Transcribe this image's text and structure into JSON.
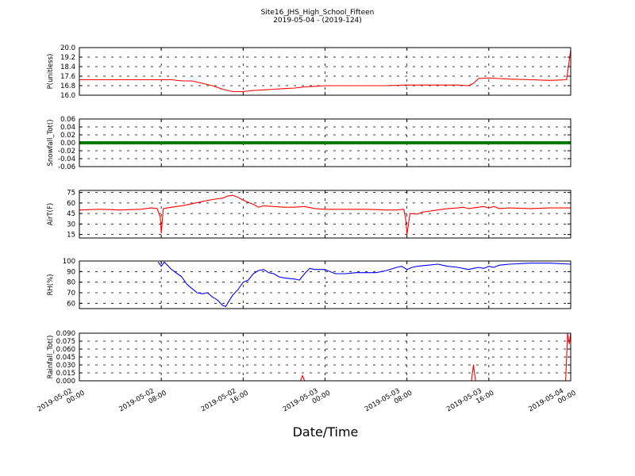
{
  "figure": {
    "title": "Site16_JHS_High_School_Fifteen",
    "subtitle": "2019-05-04 - (2019-124)",
    "xlabel": "Date/Time",
    "xticks": [
      "2019-05-02\n00:00",
      "2019-05-02\n08:00",
      "2019-05-02\n16:00",
      "2019-05-03\n00:00",
      "2019-05-03\n08:00",
      "2019-05-03\n16:00",
      "2019-05-04\n00:00"
    ]
  },
  "chart_data": [
    {
      "type": "line",
      "ylabel": "P(unitless)",
      "ylim": [
        16.0,
        20.0
      ],
      "yticks": [
        "16.0",
        "16.8",
        "17.6",
        "18.4",
        "19.2",
        "20.0"
      ],
      "color": "#ff0000",
      "grid": true,
      "x_hours": [
        0,
        2,
        4,
        6,
        8,
        9,
        10,
        11,
        12,
        13,
        14,
        15,
        16,
        17,
        18,
        19,
        20,
        21,
        22,
        23,
        24,
        28,
        30,
        32,
        36,
        37,
        38,
        38.5,
        39,
        40,
        41,
        42,
        44,
        46,
        47.6,
        48
      ],
      "values": [
        17.3,
        17.3,
        17.3,
        17.3,
        17.3,
        17.3,
        17.2,
        17.2,
        17.0,
        16.8,
        16.5,
        16.3,
        16.3,
        16.4,
        16.45,
        16.5,
        16.55,
        16.6,
        16.7,
        16.75,
        16.8,
        16.8,
        16.8,
        16.85,
        16.85,
        16.85,
        16.8,
        17.0,
        17.4,
        17.45,
        17.4,
        17.35,
        17.3,
        17.25,
        17.3,
        19.8
      ]
    },
    {
      "type": "line",
      "ylabel": "Snowfall_Tot()",
      "ylim": [
        -0.06,
        0.06
      ],
      "yticks": [
        "-0.06",
        "-0.04",
        "-0.02",
        "0.00",
        "0.02",
        "0.04",
        "0.06"
      ],
      "color": "#008000",
      "grid": true,
      "x_hours": [
        0,
        48
      ],
      "values": [
        0.0,
        0.0
      ]
    },
    {
      "type": "line",
      "ylabel": "AirT(F)",
      "ylim": [
        10,
        78
      ],
      "yticks": [
        "15",
        "30",
        "45",
        "60",
        "75"
      ],
      "color": "#ff0000",
      "grid": true,
      "x_hours": [
        0,
        2,
        4,
        6,
        7,
        7.6,
        7.9,
        8.0,
        8.2,
        9,
        10,
        11,
        12,
        13,
        14,
        14.5,
        15,
        15.5,
        16,
        16.5,
        17,
        17.5,
        18,
        19,
        20,
        21,
        22,
        23,
        24,
        26,
        28,
        30,
        31,
        31.7,
        31.9,
        32.0,
        32.3,
        33,
        33.5,
        34,
        35,
        36,
        37,
        37.5,
        38,
        38.5,
        39,
        39.5,
        40,
        40.5,
        41,
        42,
        44,
        46,
        48
      ],
      "values": [
        50,
        51,
        50,
        51,
        53,
        52,
        40,
        17,
        52,
        54,
        56,
        59,
        62,
        65,
        67,
        70,
        71,
        68,
        64,
        61,
        58,
        54,
        56,
        55,
        54,
        54,
        55,
        52,
        51,
        51,
        51,
        50,
        50,
        51,
        35,
        15,
        45,
        44,
        47,
        48,
        50,
        52,
        53,
        54,
        52,
        53,
        54,
        55,
        53,
        55,
        52,
        53,
        52,
        53,
        53
      ]
    },
    {
      "type": "line",
      "ylabel": "RH(%)",
      "ylim": [
        55,
        100
      ],
      "yticks": [
        "60",
        "70",
        "80",
        "90",
        "100"
      ],
      "color": "#0000ff",
      "grid": true,
      "x_hours": [
        7.7,
        8.0,
        8.3,
        9,
        10,
        10.5,
        11,
        11.5,
        12,
        12.5,
        13,
        13.5,
        14,
        14.3,
        14.6,
        15,
        15.5,
        16,
        16.5,
        17,
        17.5,
        18,
        18.5,
        19,
        19.5,
        20,
        21,
        21.5,
        22,
        22.5,
        23,
        24,
        25,
        26,
        27,
        28,
        29,
        30,
        31,
        31.5,
        32,
        32.5,
        33,
        34,
        35,
        36,
        37,
        38,
        38.5,
        39,
        39.5,
        40,
        40.5,
        41,
        42,
        44,
        46,
        48
      ],
      "values": [
        99,
        95,
        99,
        92,
        85,
        78,
        74,
        70,
        69,
        70,
        66,
        63,
        58,
        57,
        62,
        68,
        73,
        80,
        82,
        88,
        91,
        92,
        89,
        88,
        85,
        84,
        83,
        82,
        88,
        93,
        92,
        92,
        88,
        88,
        89,
        89,
        89,
        91,
        94,
        95,
        92,
        94,
        95,
        96,
        97,
        95,
        94,
        92,
        93,
        94,
        93,
        95,
        94,
        96,
        97,
        98,
        98,
        97
      ]
    },
    {
      "type": "line",
      "ylabel": "Rainfall_Tot()",
      "ylim": [
        0.0,
        0.09
      ],
      "yticks": [
        "0.000",
        "0.015",
        "0.030",
        "0.045",
        "0.060",
        "0.075",
        "0.090"
      ],
      "color": "#ff0000",
      "grid": true,
      "x_hours": [
        0,
        21.6,
        21.8,
        22.0,
        38.3,
        38.5,
        38.7,
        47.5,
        47.7,
        47.85,
        48
      ],
      "values": [
        0.0,
        0.0,
        0.01,
        0.0,
        0.0,
        0.03,
        0.0,
        0.0,
        0.09,
        0.07,
        0.09
      ]
    }
  ]
}
